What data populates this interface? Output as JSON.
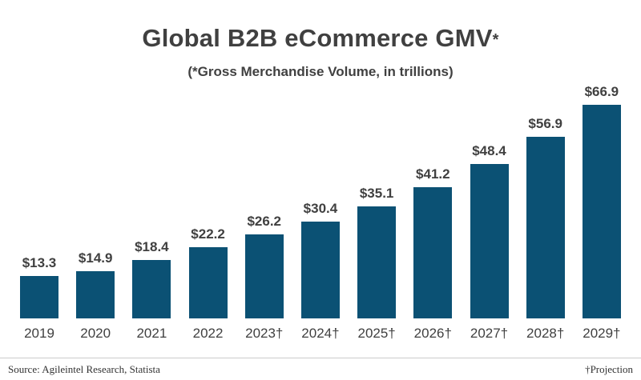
{
  "title": {
    "main": "Global B2B eCommerce GMV",
    "asterisk": "*"
  },
  "subtitle": "(*Gross Merchandise Volume, in trillions)",
  "chart_data": {
    "type": "bar",
    "title": "Global B2B eCommerce GMV*",
    "subtitle": "(*Gross Merchandise Volume, in trillions)",
    "categories": [
      "2019",
      "2020",
      "2021",
      "2022",
      "2023†",
      "2024†",
      "2025†",
      "2026†",
      "2027†",
      "2028†",
      "2029†"
    ],
    "values": [
      13.3,
      14.9,
      18.4,
      22.2,
      26.2,
      30.4,
      35.1,
      41.2,
      48.4,
      56.9,
      66.9
    ],
    "value_labels": [
      "$13.3",
      "$14.9",
      "$18.4",
      "$22.2",
      "$26.2",
      "$30.4",
      "$35.1",
      "$41.2",
      "$48.4",
      "$56.9",
      "$66.9"
    ],
    "ylim": [
      0,
      70
    ],
    "grid": false,
    "legend": "none",
    "bar_color": "#0b5174",
    "units": "trillions USD"
  },
  "footer": {
    "source": "Source: Agileintel Research, Statista",
    "projection_note": "†Projection"
  },
  "colors": {
    "bar": "#0b5174",
    "text": "#404040",
    "divider": "#cccccc"
  }
}
